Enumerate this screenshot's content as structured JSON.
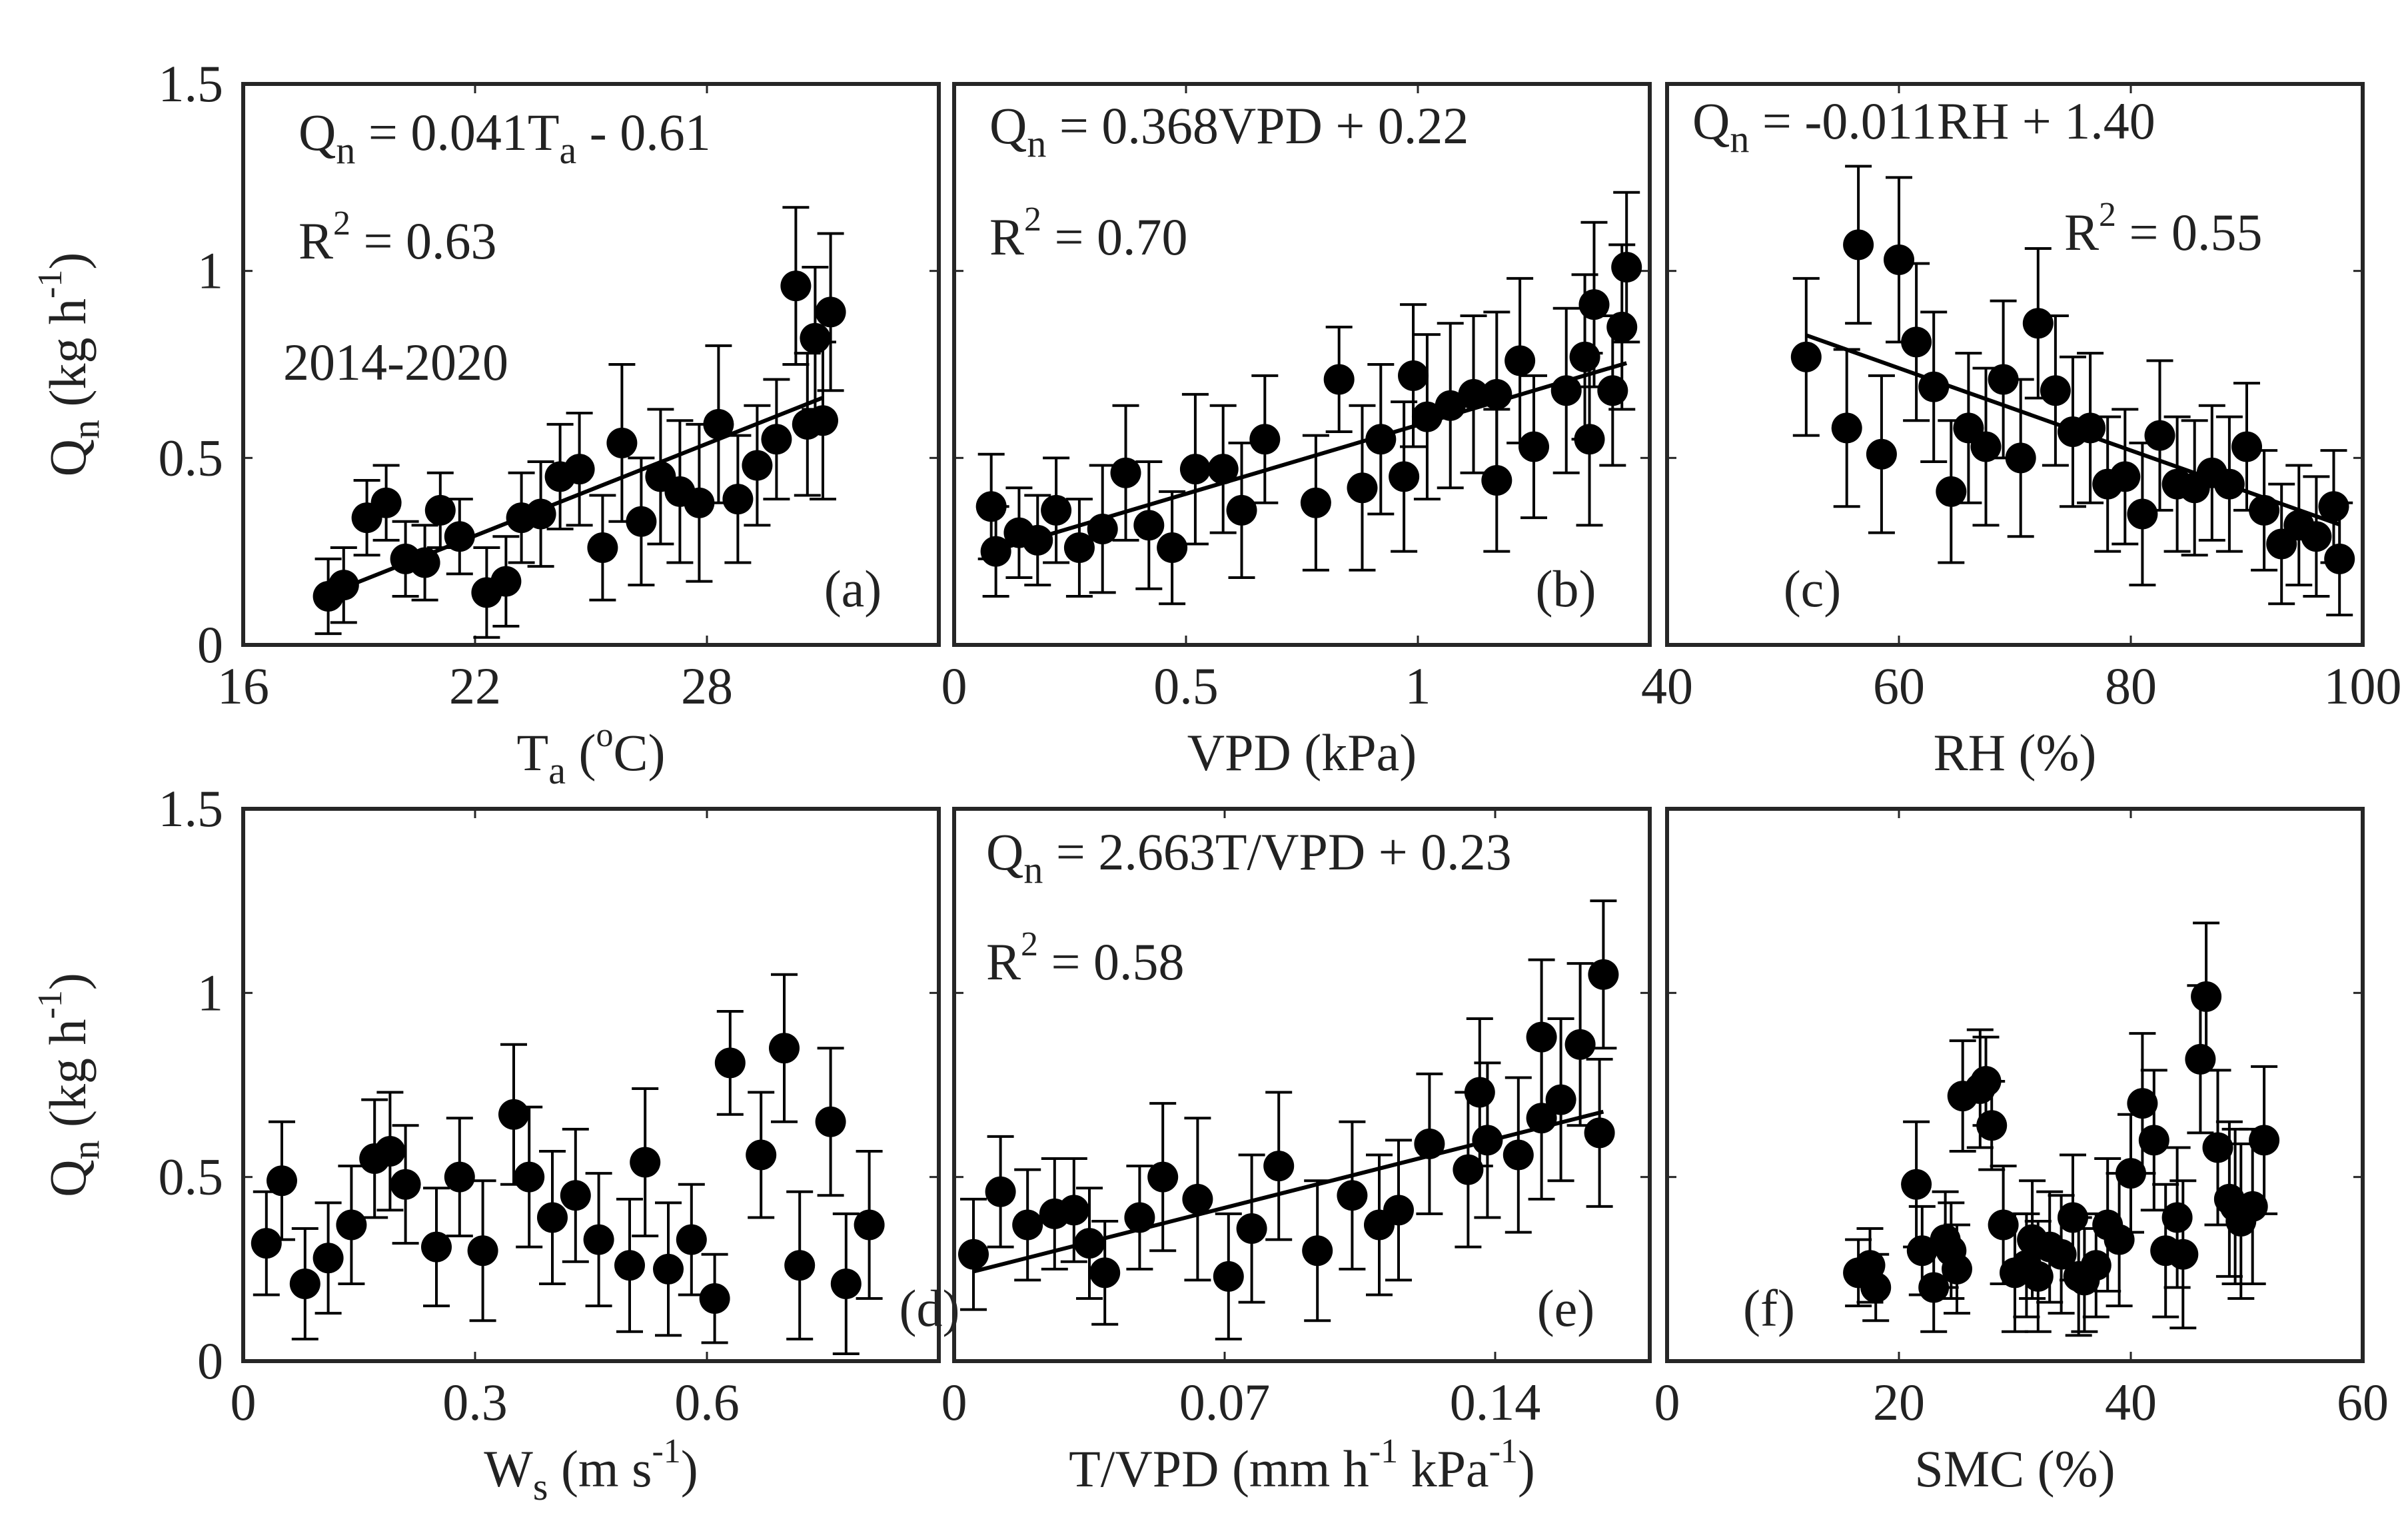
{
  "figure": {
    "ylabel": {
      "main": "Q",
      "sub": "n",
      "pre": "(kg h",
      "sup": "-1",
      "post": ")"
    },
    "colors": {
      "marker": "#000000",
      "frame": "#262626",
      "text": "#222222"
    }
  },
  "chart_data": [
    {
      "type": "scatter",
      "panel": "(a)",
      "xlabel": {
        "main": "T",
        "sub": "a",
        "mid": " (",
        "sup": "o",
        "post": "C)"
      },
      "xlim": [
        16,
        34
      ],
      "ylim": [
        0,
        1.5
      ],
      "xticks": [
        "16",
        "22",
        "28"
      ],
      "yticks": [
        "0",
        "0.5",
        "1",
        "1.5"
      ],
      "equation": {
        "lhs": "Q",
        "lhs_sub": "n",
        "rhs_a": " = 0.041T",
        "rhs_sub": "a",
        "rhs_b": " - 0.61"
      },
      "r2": {
        "label": "R",
        "sup": "2",
        "value": " = 0.63"
      },
      "note": "2014-2020",
      "fit": {
        "slope": 0.041,
        "intercept": -0.61,
        "x_range": [
          18.2,
          31.0
        ]
      },
      "points": [
        {
          "x": 18.2,
          "y": 0.13,
          "e": 0.1
        },
        {
          "x": 18.6,
          "y": 0.16,
          "e": 0.1
        },
        {
          "x": 19.2,
          "y": 0.34,
          "e": 0.1
        },
        {
          "x": 19.7,
          "y": 0.38,
          "e": 0.1
        },
        {
          "x": 20.2,
          "y": 0.23,
          "e": 0.1
        },
        {
          "x": 20.7,
          "y": 0.22,
          "e": 0.1
        },
        {
          "x": 21.1,
          "y": 0.36,
          "e": 0.1
        },
        {
          "x": 21.6,
          "y": 0.29,
          "e": 0.1
        },
        {
          "x": 22.3,
          "y": 0.14,
          "e": 0.12
        },
        {
          "x": 22.8,
          "y": 0.17,
          "e": 0.12
        },
        {
          "x": 23.2,
          "y": 0.34,
          "e": 0.12
        },
        {
          "x": 23.7,
          "y": 0.35,
          "e": 0.14
        },
        {
          "x": 24.2,
          "y": 0.45,
          "e": 0.14
        },
        {
          "x": 24.7,
          "y": 0.47,
          "e": 0.15
        },
        {
          "x": 25.3,
          "y": 0.26,
          "e": 0.14
        },
        {
          "x": 25.8,
          "y": 0.54,
          "e": 0.21
        },
        {
          "x": 26.3,
          "y": 0.33,
          "e": 0.17
        },
        {
          "x": 26.8,
          "y": 0.45,
          "e": 0.18
        },
        {
          "x": 27.3,
          "y": 0.41,
          "e": 0.19
        },
        {
          "x": 27.8,
          "y": 0.38,
          "e": 0.21
        },
        {
          "x": 28.3,
          "y": 0.59,
          "e": 0.21
        },
        {
          "x": 28.8,
          "y": 0.39,
          "e": 0.17
        },
        {
          "x": 29.3,
          "y": 0.48,
          "e": 0.16
        },
        {
          "x": 29.8,
          "y": 0.55,
          "e": 0.16
        },
        {
          "x": 30.3,
          "y": 0.96,
          "e": 0.21
        },
        {
          "x": 30.6,
          "y": 0.59,
          "e": 0.19
        },
        {
          "x": 30.8,
          "y": 0.82,
          "e": 0.19
        },
        {
          "x": 31.0,
          "y": 0.6,
          "e": 0.21
        },
        {
          "x": 31.2,
          "y": 0.89,
          "e": 0.21
        }
      ]
    },
    {
      "type": "scatter",
      "panel": "(b)",
      "xlabel": {
        "main": "VPD (kPa)"
      },
      "xlim": [
        0,
        1.5
      ],
      "ylim": [
        0,
        1.5
      ],
      "xticks": [
        "0",
        "0.5",
        "1"
      ],
      "equation": {
        "lhs": "Q",
        "lhs_sub": "n",
        "rhs_a": " = 0.368VPD + 0.22"
      },
      "r2": {
        "label": "R",
        "sup": "2",
        "value": " = 0.70"
      },
      "fit": {
        "slope": 0.368,
        "intercept": 0.22,
        "x_range": [
          0.08,
          1.45
        ]
      },
      "points": [
        {
          "x": 0.08,
          "y": 0.37,
          "e": 0.14
        },
        {
          "x": 0.09,
          "y": 0.25,
          "e": 0.12
        },
        {
          "x": 0.14,
          "y": 0.3,
          "e": 0.12
        },
        {
          "x": 0.18,
          "y": 0.28,
          "e": 0.12
        },
        {
          "x": 0.22,
          "y": 0.36,
          "e": 0.14
        },
        {
          "x": 0.27,
          "y": 0.26,
          "e": 0.13
        },
        {
          "x": 0.32,
          "y": 0.31,
          "e": 0.17
        },
        {
          "x": 0.37,
          "y": 0.46,
          "e": 0.18
        },
        {
          "x": 0.42,
          "y": 0.32,
          "e": 0.17
        },
        {
          "x": 0.47,
          "y": 0.26,
          "e": 0.15
        },
        {
          "x": 0.52,
          "y": 0.47,
          "e": 0.2
        },
        {
          "x": 0.58,
          "y": 0.47,
          "e": 0.17
        },
        {
          "x": 0.62,
          "y": 0.36,
          "e": 0.18
        },
        {
          "x": 0.67,
          "y": 0.55,
          "e": 0.17
        },
        {
          "x": 0.78,
          "y": 0.38,
          "e": 0.18
        },
        {
          "x": 0.83,
          "y": 0.71,
          "e": 0.14
        },
        {
          "x": 0.88,
          "y": 0.42,
          "e": 0.22
        },
        {
          "x": 0.92,
          "y": 0.55,
          "e": 0.2
        },
        {
          "x": 0.97,
          "y": 0.45,
          "e": 0.2
        },
        {
          "x": 0.99,
          "y": 0.72,
          "e": 0.19
        },
        {
          "x": 1.02,
          "y": 0.61,
          "e": 0.22
        },
        {
          "x": 1.07,
          "y": 0.64,
          "e": 0.22
        },
        {
          "x": 1.12,
          "y": 0.67,
          "e": 0.21
        },
        {
          "x": 1.17,
          "y": 0.44,
          "e": 0.19
        },
        {
          "x": 1.17,
          "y": 0.67,
          "e": 0.22
        },
        {
          "x": 1.22,
          "y": 0.76,
          "e": 0.22
        },
        {
          "x": 1.25,
          "y": 0.53,
          "e": 0.19
        },
        {
          "x": 1.32,
          "y": 0.68,
          "e": 0.22
        },
        {
          "x": 1.36,
          "y": 0.77,
          "e": 0.22
        },
        {
          "x": 1.37,
          "y": 0.55,
          "e": 0.23
        },
        {
          "x": 1.38,
          "y": 0.91,
          "e": 0.22
        },
        {
          "x": 1.42,
          "y": 0.68,
          "e": 0.2
        },
        {
          "x": 1.44,
          "y": 0.85,
          "e": 0.22
        },
        {
          "x": 1.45,
          "y": 1.01,
          "e": 0.2
        }
      ]
    },
    {
      "type": "scatter",
      "panel": "(c)",
      "xlabel": {
        "main": "RH (%)"
      },
      "xlim": [
        40,
        100
      ],
      "ylim": [
        0,
        1.5
      ],
      "xticks": [
        "40",
        "60",
        "80",
        "100"
      ],
      "equation": {
        "lhs": "Q",
        "lhs_sub": "n",
        "rhs_a": " = -0.011RH + 1.40"
      },
      "r2": {
        "label": "R",
        "sup": "2",
        "value": " = 0.55"
      },
      "fit": {
        "slope": -0.011,
        "intercept": 1.4,
        "x_range": [
          52,
          98
        ]
      },
      "points": [
        {
          "x": 52,
          "y": 0.77,
          "e": 0.21
        },
        {
          "x": 55.5,
          "y": 0.58,
          "e": 0.21
        },
        {
          "x": 56.5,
          "y": 1.07,
          "e": 0.21
        },
        {
          "x": 58.5,
          "y": 0.51,
          "e": 0.21
        },
        {
          "x": 60,
          "y": 1.03,
          "e": 0.22
        },
        {
          "x": 61.5,
          "y": 0.81,
          "e": 0.21
        },
        {
          "x": 63,
          "y": 0.69,
          "e": 0.2
        },
        {
          "x": 64.5,
          "y": 0.41,
          "e": 0.19
        },
        {
          "x": 66,
          "y": 0.58,
          "e": 0.2
        },
        {
          "x": 67.5,
          "y": 0.53,
          "e": 0.21
        },
        {
          "x": 69,
          "y": 0.71,
          "e": 0.21
        },
        {
          "x": 70.5,
          "y": 0.5,
          "e": 0.21
        },
        {
          "x": 72,
          "y": 0.86,
          "e": 0.2
        },
        {
          "x": 73.5,
          "y": 0.68,
          "e": 0.2
        },
        {
          "x": 75,
          "y": 0.57,
          "e": 0.2
        },
        {
          "x": 76.5,
          "y": 0.58,
          "e": 0.2
        },
        {
          "x": 78,
          "y": 0.43,
          "e": 0.18
        },
        {
          "x": 79.5,
          "y": 0.45,
          "e": 0.18
        },
        {
          "x": 81,
          "y": 0.35,
          "e": 0.19
        },
        {
          "x": 82.5,
          "y": 0.56,
          "e": 0.2
        },
        {
          "x": 84,
          "y": 0.43,
          "e": 0.18
        },
        {
          "x": 85.5,
          "y": 0.42,
          "e": 0.18
        },
        {
          "x": 87,
          "y": 0.46,
          "e": 0.18
        },
        {
          "x": 88.5,
          "y": 0.43,
          "e": 0.18
        },
        {
          "x": 90,
          "y": 0.53,
          "e": 0.17
        },
        {
          "x": 91.5,
          "y": 0.36,
          "e": 0.16
        },
        {
          "x": 93,
          "y": 0.27,
          "e": 0.16
        },
        {
          "x": 94.5,
          "y": 0.32,
          "e": 0.16
        },
        {
          "x": 96,
          "y": 0.29,
          "e": 0.16
        },
        {
          "x": 97.5,
          "y": 0.37,
          "e": 0.15
        },
        {
          "x": 98,
          "y": 0.23,
          "e": 0.15
        }
      ]
    },
    {
      "type": "scatter",
      "panel": "(d)",
      "xlabel": {
        "main": "W",
        "sub": "s",
        "mid": " (m s",
        "sup": "-1",
        "post": ")"
      },
      "xlim": [
        0,
        0.9
      ],
      "ylim": [
        0,
        1.5
      ],
      "xticks": [
        "0",
        "0.3",
        "0.6"
      ],
      "yticks": [
        "0",
        "0.5",
        "1",
        "1.5"
      ],
      "points": [
        {
          "x": 0.03,
          "y": 0.32,
          "e": 0.14
        },
        {
          "x": 0.05,
          "y": 0.49,
          "e": 0.16
        },
        {
          "x": 0.08,
          "y": 0.21,
          "e": 0.15
        },
        {
          "x": 0.11,
          "y": 0.28,
          "e": 0.15
        },
        {
          "x": 0.14,
          "y": 0.37,
          "e": 0.16
        },
        {
          "x": 0.17,
          "y": 0.55,
          "e": 0.16
        },
        {
          "x": 0.19,
          "y": 0.57,
          "e": 0.16
        },
        {
          "x": 0.21,
          "y": 0.48,
          "e": 0.16
        },
        {
          "x": 0.25,
          "y": 0.31,
          "e": 0.16
        },
        {
          "x": 0.28,
          "y": 0.5,
          "e": 0.16
        },
        {
          "x": 0.31,
          "y": 0.3,
          "e": 0.19
        },
        {
          "x": 0.35,
          "y": 0.67,
          "e": 0.19
        },
        {
          "x": 0.37,
          "y": 0.5,
          "e": 0.19
        },
        {
          "x": 0.4,
          "y": 0.39,
          "e": 0.18
        },
        {
          "x": 0.43,
          "y": 0.45,
          "e": 0.18
        },
        {
          "x": 0.46,
          "y": 0.33,
          "e": 0.18
        },
        {
          "x": 0.5,
          "y": 0.26,
          "e": 0.18
        },
        {
          "x": 0.52,
          "y": 0.54,
          "e": 0.2
        },
        {
          "x": 0.55,
          "y": 0.25,
          "e": 0.18
        },
        {
          "x": 0.58,
          "y": 0.33,
          "e": 0.15
        },
        {
          "x": 0.61,
          "y": 0.17,
          "e": 0.12
        },
        {
          "x": 0.63,
          "y": 0.81,
          "e": 0.14
        },
        {
          "x": 0.67,
          "y": 0.56,
          "e": 0.17
        },
        {
          "x": 0.7,
          "y": 0.85,
          "e": 0.2
        },
        {
          "x": 0.72,
          "y": 0.26,
          "e": 0.2
        },
        {
          "x": 0.76,
          "y": 0.65,
          "e": 0.2
        },
        {
          "x": 0.78,
          "y": 0.21,
          "e": 0.19
        },
        {
          "x": 0.81,
          "y": 0.37,
          "e": 0.2
        }
      ]
    },
    {
      "type": "scatter",
      "panel": "(e)",
      "xlabel": {
        "main": "T/VPD (mm h",
        "sup": "-1",
        "mid": " kPa",
        "sup2": "-1",
        "post": ")"
      },
      "xlim": [
        0,
        0.18
      ],
      "ylim": [
        0,
        1.5
      ],
      "xticks": [
        "0",
        "0.07",
        "0.14"
      ],
      "equation": {
        "lhs": "Q",
        "lhs_sub": "n",
        "rhs_a": " = 2.663T/VPD + 0.23"
      },
      "r2": {
        "label": "R",
        "sup": "2",
        "value": " = 0.58"
      },
      "fit": {
        "slope": 2.663,
        "intercept": 0.23,
        "x_range": [
          0.005,
          0.168
        ]
      },
      "points": [
        {
          "x": 0.005,
          "y": 0.29,
          "e": 0.15
        },
        {
          "x": 0.012,
          "y": 0.46,
          "e": 0.15
        },
        {
          "x": 0.019,
          "y": 0.37,
          "e": 0.15
        },
        {
          "x": 0.026,
          "y": 0.4,
          "e": 0.15
        },
        {
          "x": 0.031,
          "y": 0.41,
          "e": 0.14
        },
        {
          "x": 0.035,
          "y": 0.32,
          "e": 0.15
        },
        {
          "x": 0.039,
          "y": 0.24,
          "e": 0.14
        },
        {
          "x": 0.048,
          "y": 0.39,
          "e": 0.14
        },
        {
          "x": 0.054,
          "y": 0.5,
          "e": 0.2
        },
        {
          "x": 0.063,
          "y": 0.44,
          "e": 0.22
        },
        {
          "x": 0.071,
          "y": 0.23,
          "e": 0.17
        },
        {
          "x": 0.077,
          "y": 0.36,
          "e": 0.2
        },
        {
          "x": 0.084,
          "y": 0.53,
          "e": 0.2
        },
        {
          "x": 0.094,
          "y": 0.3,
          "e": 0.19
        },
        {
          "x": 0.103,
          "y": 0.45,
          "e": 0.2
        },
        {
          "x": 0.11,
          "y": 0.37,
          "e": 0.19
        },
        {
          "x": 0.115,
          "y": 0.41,
          "e": 0.19
        },
        {
          "x": 0.123,
          "y": 0.59,
          "e": 0.19
        },
        {
          "x": 0.133,
          "y": 0.52,
          "e": 0.21
        },
        {
          "x": 0.136,
          "y": 0.73,
          "e": 0.2
        },
        {
          "x": 0.138,
          "y": 0.6,
          "e": 0.21
        },
        {
          "x": 0.146,
          "y": 0.56,
          "e": 0.21
        },
        {
          "x": 0.152,
          "y": 0.88,
          "e": 0.21
        },
        {
          "x": 0.152,
          "y": 0.66,
          "e": 0.22
        },
        {
          "x": 0.157,
          "y": 0.71,
          "e": 0.22
        },
        {
          "x": 0.162,
          "y": 0.86,
          "e": 0.22
        },
        {
          "x": 0.167,
          "y": 0.62,
          "e": 0.2
        },
        {
          "x": 0.168,
          "y": 1.05,
          "e": 0.2
        }
      ]
    },
    {
      "type": "scatter",
      "panel": "(f)",
      "xlabel": {
        "main": "SMC (%)"
      },
      "xlim": [
        0,
        60
      ],
      "ylim": [
        0,
        1.5
      ],
      "xticks": [
        "0",
        "20",
        "40",
        "60"
      ],
      "points": [
        {
          "x": 16.5,
          "y": 0.24,
          "e": 0.09
        },
        {
          "x": 17.5,
          "y": 0.26,
          "e": 0.1
        },
        {
          "x": 18,
          "y": 0.2,
          "e": 0.09
        },
        {
          "x": 21.5,
          "y": 0.48,
          "e": 0.17
        },
        {
          "x": 22,
          "y": 0.3,
          "e": 0.12
        },
        {
          "x": 23,
          "y": 0.2,
          "e": 0.12
        },
        {
          "x": 24,
          "y": 0.33,
          "e": 0.13
        },
        {
          "x": 24.5,
          "y": 0.3,
          "e": 0.13
        },
        {
          "x": 25,
          "y": 0.25,
          "e": 0.12
        },
        {
          "x": 25.5,
          "y": 0.72,
          "e": 0.15
        },
        {
          "x": 27,
          "y": 0.74,
          "e": 0.16
        },
        {
          "x": 27.5,
          "y": 0.76,
          "e": 0.12
        },
        {
          "x": 28,
          "y": 0.64,
          "e": 0.12
        },
        {
          "x": 29,
          "y": 0.37,
          "e": 0.16
        },
        {
          "x": 30,
          "y": 0.24,
          "e": 0.16
        },
        {
          "x": 31,
          "y": 0.26,
          "e": 0.14
        },
        {
          "x": 31.5,
          "y": 0.33,
          "e": 0.16
        },
        {
          "x": 32,
          "y": 0.23,
          "e": 0.15
        },
        {
          "x": 33,
          "y": 0.31,
          "e": 0.15
        },
        {
          "x": 34,
          "y": 0.29,
          "e": 0.16
        },
        {
          "x": 35,
          "y": 0.39,
          "e": 0.17
        },
        {
          "x": 35.5,
          "y": 0.23,
          "e": 0.16
        },
        {
          "x": 36,
          "y": 0.22,
          "e": 0.14
        },
        {
          "x": 37,
          "y": 0.26,
          "e": 0.14
        },
        {
          "x": 38,
          "y": 0.37,
          "e": 0.18
        },
        {
          "x": 39,
          "y": 0.33,
          "e": 0.18
        },
        {
          "x": 40,
          "y": 0.51,
          "e": 0.16
        },
        {
          "x": 41,
          "y": 0.7,
          "e": 0.19
        },
        {
          "x": 42,
          "y": 0.6,
          "e": 0.19
        },
        {
          "x": 43,
          "y": 0.3,
          "e": 0.18
        },
        {
          "x": 44,
          "y": 0.39,
          "e": 0.19
        },
        {
          "x": 44.5,
          "y": 0.29,
          "e": 0.2
        },
        {
          "x": 46,
          "y": 0.82,
          "e": 0.2
        },
        {
          "x": 46.5,
          "y": 0.99,
          "e": 0.2
        },
        {
          "x": 47.5,
          "y": 0.58,
          "e": 0.21
        },
        {
          "x": 48.5,
          "y": 0.44,
          "e": 0.21
        },
        {
          "x": 49,
          "y": 0.42,
          "e": 0.21
        },
        {
          "x": 49.5,
          "y": 0.38,
          "e": 0.21
        },
        {
          "x": 50.5,
          "y": 0.42,
          "e": 0.21
        },
        {
          "x": 51.5,
          "y": 0.6,
          "e": 0.2
        }
      ]
    }
  ]
}
